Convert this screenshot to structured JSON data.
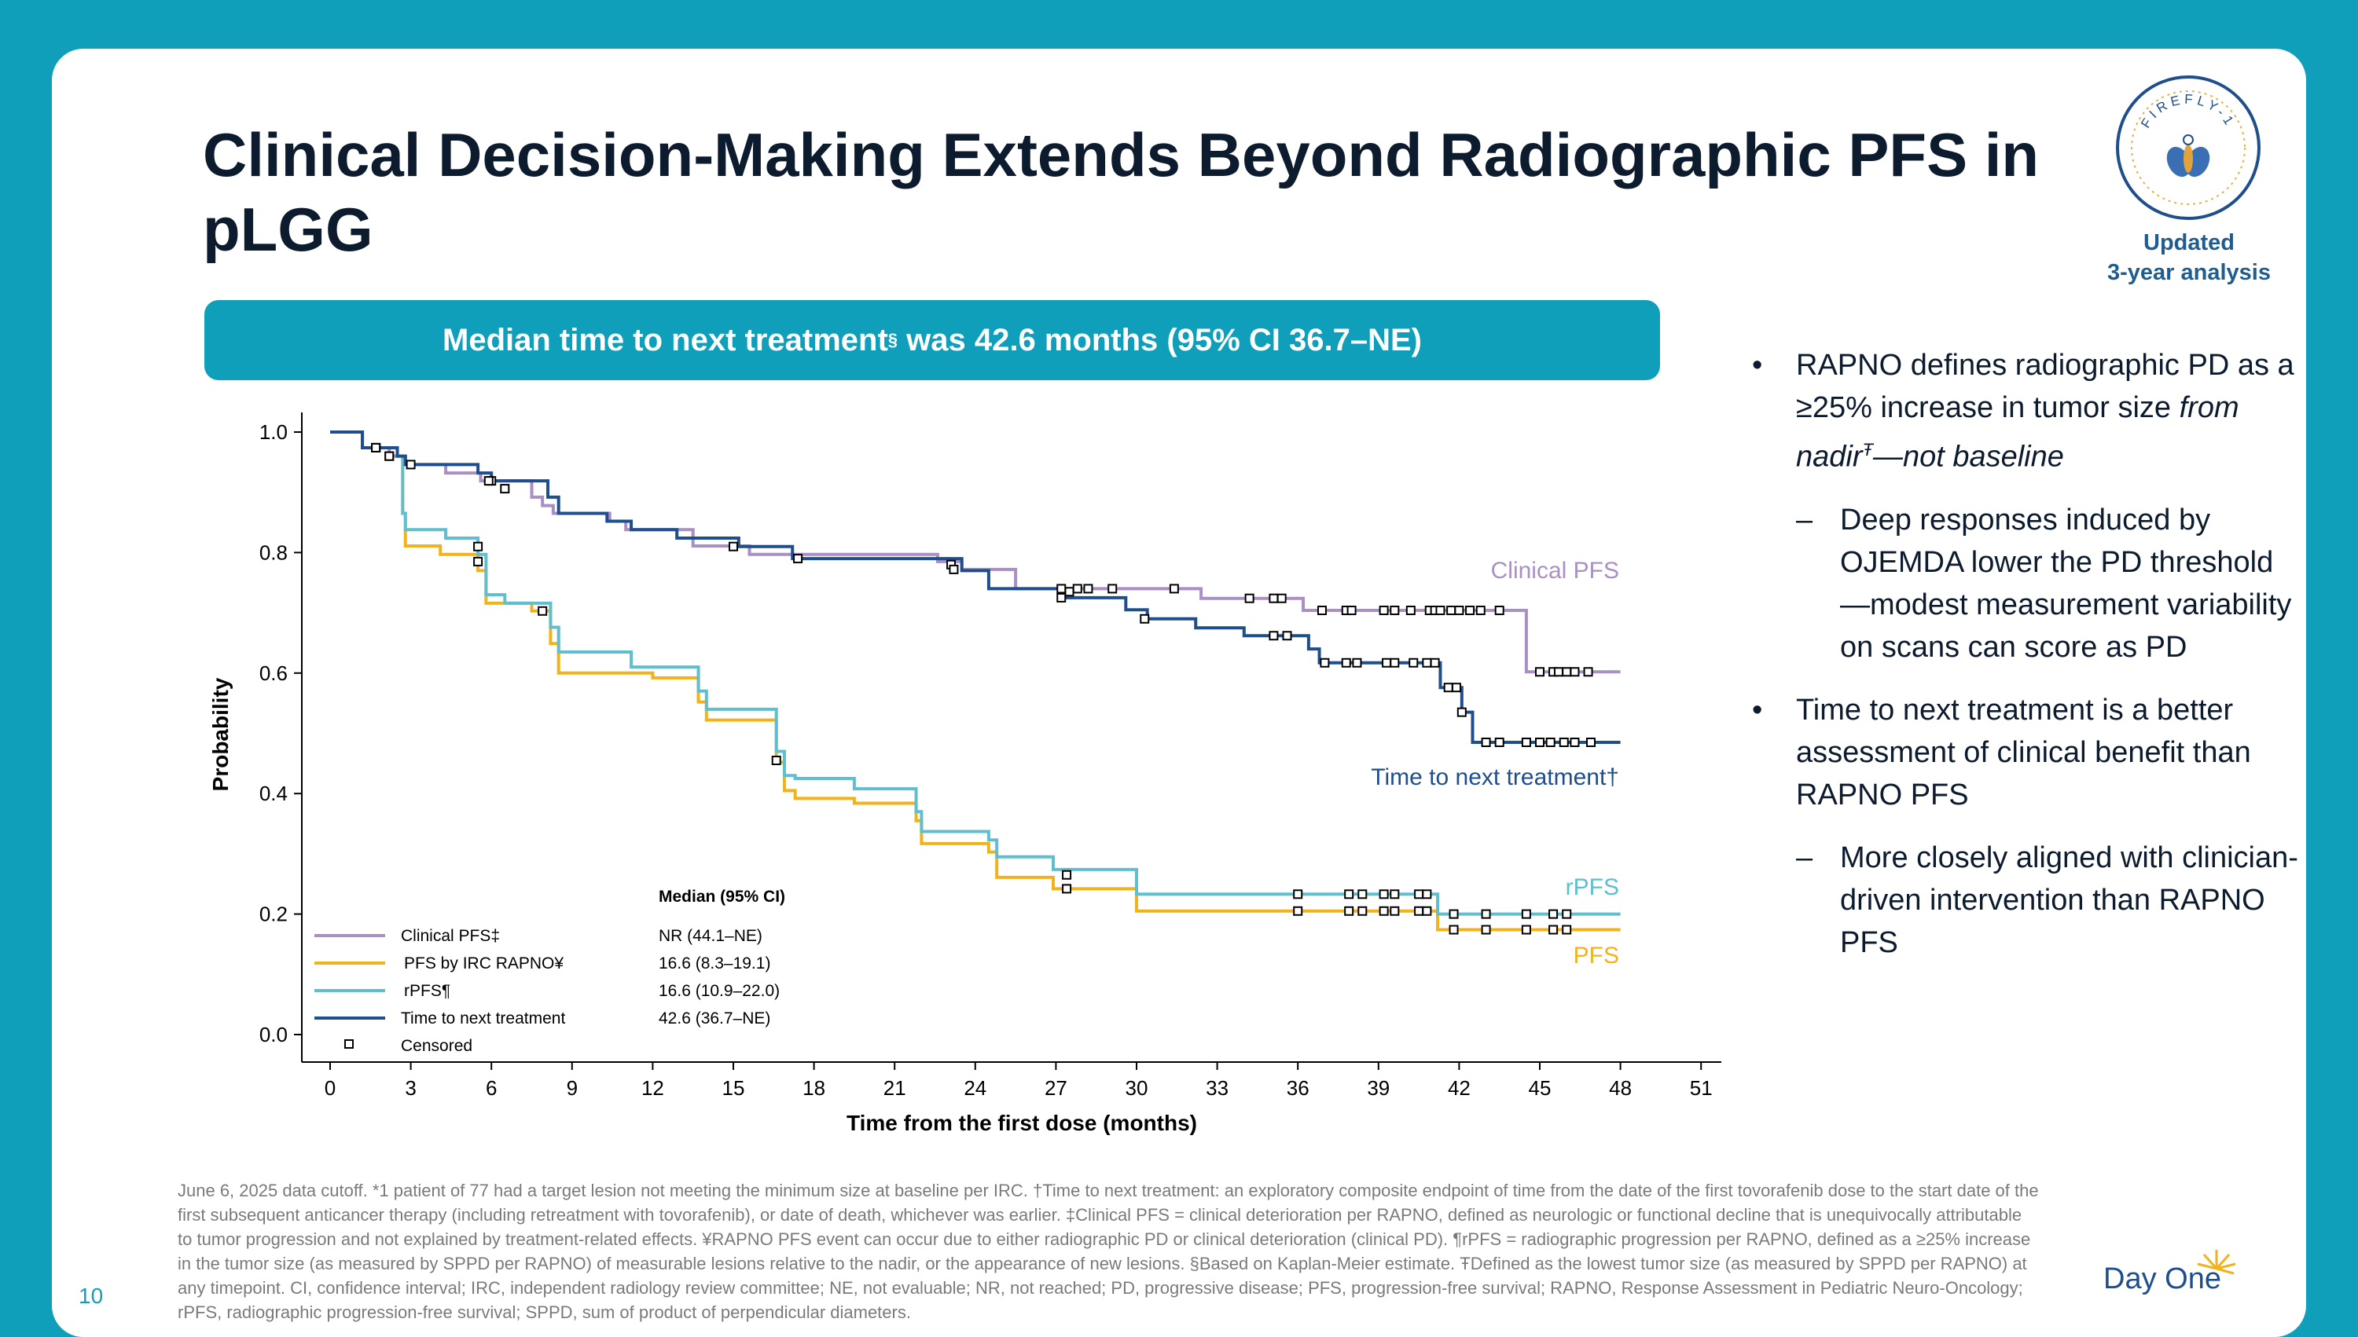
{
  "slide": {
    "title": "Clinical Decision-Making Extends Beyond Radiographic PFS in pLGG",
    "badge_logo": "FIREFLY-1",
    "badge_line1": "Updated",
    "badge_line2": "3-year analysis",
    "banner_pre": "Median time to next treatment",
    "banner_sup": "§",
    "banner_post": " was 42.6 months (95% CI 36.7–NE)",
    "page_number": "10",
    "company_logo": "Day One"
  },
  "bullets": {
    "b1_text": "RAPNO defines radiographic PD as a ≥25% increase in tumor size ",
    "b1_italic": "from nadir",
    "b1_sup": "Ŧ",
    "b1_italic2": "—not baseline",
    "b1_sub": "Deep responses induced by OJEMDA lower the PD threshold—modest measurement variability on scans can score as PD",
    "b2_text": "Time to next treatment is a better assessment of clinical benefit than RAPNO PFS",
    "b2_sub": "More closely aligned with clinician-driven intervention than RAPNO PFS",
    "bullet_glyph": "•",
    "dash_glyph": "–"
  },
  "footnote": "June 6, 2025 data cutoff. *1 patient of 77 had a target lesion not meeting the minimum size at baseline per IRC. †Time to next treatment: an exploratory composite endpoint of time from the date of the first tovorafenib dose to the start date of the first subsequent anticancer therapy (including retreatment with tovorafenib), or date of death, whichever was earlier. ‡Clinical PFS = clinical deterioration per RAPNO, defined as neurologic or functional decline that is unequivocally attributable to tumor progression and not explained by treatment-related effects. ¥RAPNO PFS event can occur due to either radiographic PD or clinical deterioration (clinical PD). ¶rPFS = radiographic progression per RAPNO, defined as a ≥25% increase in the tumor size (as measured by SPPD per RAPNO) of measurable lesions relative to the nadir, or the appearance of new lesions. §Based on Kaplan-Meier estimate. ŦDefined as the lowest tumor size (as measured by SPPD per RAPNO) at any timepoint.  CI, confidence interval; IRC, independent radiology review committee; NE, not evaluable; NR, not reached; PD, progressive disease; PFS, progression-free survival; RAPNO, Response Assessment in Pediatric Neuro-Oncology; rPFS, radiographic progression-free survival; SPPD, sum of product of perpendicular diameters.",
  "colors": {
    "teal": "#0f9fba",
    "clinical": "#a98fc4",
    "pfs": "#f2b31a",
    "rpfs": "#5fbfcf",
    "ttnt": "#1f4e8c"
  },
  "chart_data": {
    "type": "line",
    "xlabel": "Time from the first dose (months)",
    "ylabel": "Probability",
    "xlim": [
      0,
      51
    ],
    "ylim": [
      0,
      1.0
    ],
    "xticks": [
      0,
      3,
      6,
      9,
      12,
      15,
      18,
      21,
      24,
      27,
      30,
      33,
      36,
      39,
      42,
      45,
      48,
      51
    ],
    "yticks": [
      0.0,
      0.2,
      0.4,
      0.6,
      0.8,
      1.0
    ],
    "ytick_labels": [
      "0.0",
      "0.2",
      "0.4",
      "0.6",
      "0.8",
      "1.0"
    ],
    "legend_header": "Median (95% CI)",
    "censored_label": "Censored",
    "series": [
      {
        "key": "clinical",
        "name": "Clinical PFS‡",
        "median": "NR (44.1–NE)",
        "end_label": "Clinical PFS",
        "steps": [
          [
            0,
            1.0
          ],
          [
            1.2,
            0.974
          ],
          [
            2.2,
            0.96
          ],
          [
            2.8,
            0.946
          ],
          [
            4.3,
            0.932
          ],
          [
            5.6,
            0.919
          ],
          [
            7.5,
            0.892
          ],
          [
            7.9,
            0.878
          ],
          [
            8.3,
            0.865
          ],
          [
            10.4,
            0.852
          ],
          [
            11.0,
            0.838
          ],
          [
            13.5,
            0.811
          ],
          [
            15.6,
            0.797
          ],
          [
            17.1,
            0.797
          ],
          [
            22.6,
            0.785
          ],
          [
            23.5,
            0.772
          ],
          [
            25.5,
            0.74
          ],
          [
            30.3,
            0.74
          ],
          [
            32.4,
            0.724
          ],
          [
            35.2,
            0.724
          ],
          [
            36.2,
            0.704
          ],
          [
            44.1,
            0.704
          ],
          [
            44.5,
            0.602
          ],
          [
            48.0,
            0.602
          ]
        ],
        "censors": [
          [
            1.7,
            0.974
          ],
          [
            2.2,
            0.96
          ],
          [
            6.0,
            0.919
          ],
          [
            27.2,
            0.74
          ],
          [
            27.8,
            0.74
          ],
          [
            28.2,
            0.74
          ],
          [
            29.1,
            0.74
          ],
          [
            31.4,
            0.74
          ],
          [
            34.2,
            0.724
          ],
          [
            35.1,
            0.724
          ],
          [
            35.4,
            0.724
          ],
          [
            36.9,
            0.704
          ],
          [
            37.8,
            0.704
          ],
          [
            38.0,
            0.704
          ],
          [
            39.2,
            0.704
          ],
          [
            39.6,
            0.704
          ],
          [
            40.2,
            0.704
          ],
          [
            40.9,
            0.704
          ],
          [
            41.1,
            0.704
          ],
          [
            41.3,
            0.704
          ],
          [
            41.7,
            0.704
          ],
          [
            42.0,
            0.704
          ],
          [
            42.4,
            0.704
          ],
          [
            42.8,
            0.704
          ],
          [
            43.5,
            0.704
          ],
          [
            45.0,
            0.602
          ],
          [
            45.5,
            0.602
          ],
          [
            45.7,
            0.602
          ],
          [
            46.0,
            0.602
          ],
          [
            46.3,
            0.602
          ],
          [
            46.8,
            0.602
          ]
        ]
      },
      {
        "key": "pfs",
        "name": "PFS by IRC RAPNO¥",
        "median": "16.6 (8.3–19.1)",
        "end_label": "PFS",
        "steps": [
          [
            0,
            1.0
          ],
          [
            1.2,
            0.974
          ],
          [
            2.5,
            0.96
          ],
          [
            2.7,
            0.865
          ],
          [
            2.8,
            0.811
          ],
          [
            4.1,
            0.797
          ],
          [
            5.5,
            0.77
          ],
          [
            5.8,
            0.716
          ],
          [
            7.5,
            0.703
          ],
          [
            8.2,
            0.649
          ],
          [
            8.5,
            0.6
          ],
          [
            12.0,
            0.592
          ],
          [
            13.7,
            0.552
          ],
          [
            14.0,
            0.522
          ],
          [
            16.6,
            0.452
          ],
          [
            16.9,
            0.405
          ],
          [
            17.3,
            0.392
          ],
          [
            19.5,
            0.384
          ],
          [
            21.8,
            0.355
          ],
          [
            22.0,
            0.317
          ],
          [
            24.5,
            0.303
          ],
          [
            24.8,
            0.261
          ],
          [
            26.9,
            0.242
          ],
          [
            30.0,
            0.205
          ],
          [
            40.7,
            0.205
          ],
          [
            41.2,
            0.174
          ],
          [
            48.0,
            0.174
          ]
        ],
        "censors": [
          [
            1.7,
            0.974
          ],
          [
            7.9,
            0.703
          ],
          [
            27.4,
            0.242
          ],
          [
            36.0,
            0.205
          ],
          [
            37.9,
            0.205
          ],
          [
            38.4,
            0.205
          ],
          [
            39.2,
            0.205
          ],
          [
            39.6,
            0.205
          ],
          [
            40.5,
            0.205
          ],
          [
            40.8,
            0.205
          ],
          [
            41.8,
            0.174
          ],
          [
            43.0,
            0.174
          ],
          [
            44.5,
            0.174
          ],
          [
            45.5,
            0.174
          ],
          [
            46.0,
            0.174
          ]
        ]
      },
      {
        "key": "rpfs",
        "name": "rPFS¶",
        "median": "16.6 (10.9–22.0)",
        "end_label": "rPFS",
        "steps": [
          [
            0,
            1.0
          ],
          [
            1.2,
            0.974
          ],
          [
            2.5,
            0.96
          ],
          [
            2.7,
            0.865
          ],
          [
            2.8,
            0.838
          ],
          [
            4.3,
            0.824
          ],
          [
            5.5,
            0.797
          ],
          [
            5.8,
            0.73
          ],
          [
            6.5,
            0.716
          ],
          [
            8.2,
            0.676
          ],
          [
            8.5,
            0.635
          ],
          [
            11.2,
            0.61
          ],
          [
            13.7,
            0.57
          ],
          [
            14.0,
            0.54
          ],
          [
            16.6,
            0.47
          ],
          [
            16.9,
            0.43
          ],
          [
            17.3,
            0.425
          ],
          [
            19.5,
            0.408
          ],
          [
            21.8,
            0.37
          ],
          [
            22.0,
            0.337
          ],
          [
            24.5,
            0.323
          ],
          [
            24.8,
            0.295
          ],
          [
            26.9,
            0.274
          ],
          [
            30.0,
            0.233
          ],
          [
            40.7,
            0.233
          ],
          [
            41.2,
            0.2
          ],
          [
            48.0,
            0.2
          ]
        ],
        "censors": [
          [
            1.7,
            0.974
          ],
          [
            5.5,
            0.81
          ],
          [
            5.5,
            0.785
          ],
          [
            16.6,
            0.455
          ],
          [
            27.4,
            0.265
          ],
          [
            36.0,
            0.233
          ],
          [
            37.9,
            0.233
          ],
          [
            38.4,
            0.233
          ],
          [
            39.2,
            0.233
          ],
          [
            39.6,
            0.233
          ],
          [
            40.5,
            0.233
          ],
          [
            40.8,
            0.233
          ],
          [
            41.8,
            0.2
          ],
          [
            43.0,
            0.2
          ],
          [
            44.5,
            0.2
          ],
          [
            45.5,
            0.2
          ],
          [
            46.0,
            0.2
          ]
        ]
      },
      {
        "key": "ttnt",
        "name": "Time to next treatment",
        "median": "42.6 (36.7–NE)",
        "end_label": "Time to next treatment†",
        "steps": [
          [
            0,
            1.0
          ],
          [
            1.2,
            0.974
          ],
          [
            2.5,
            0.96
          ],
          [
            2.8,
            0.946
          ],
          [
            5.5,
            0.932
          ],
          [
            6.0,
            0.919
          ],
          [
            8.1,
            0.892
          ],
          [
            8.5,
            0.865
          ],
          [
            10.3,
            0.852
          ],
          [
            11.2,
            0.838
          ],
          [
            12.9,
            0.824
          ],
          [
            15.2,
            0.81
          ],
          [
            17.2,
            0.79
          ],
          [
            23.5,
            0.77
          ],
          [
            24.5,
            0.74
          ],
          [
            27.1,
            0.725
          ],
          [
            29.6,
            0.705
          ],
          [
            30.4,
            0.69
          ],
          [
            32.2,
            0.675
          ],
          [
            34.0,
            0.662
          ],
          [
            36.4,
            0.64
          ],
          [
            36.8,
            0.617
          ],
          [
            40.4,
            0.617
          ],
          [
            41.3,
            0.576
          ],
          [
            42.1,
            0.535
          ],
          [
            42.5,
            0.485
          ],
          [
            48.0,
            0.485
          ]
        ],
        "censors": [
          [
            1.7,
            0.974
          ],
          [
            2.2,
            0.96
          ],
          [
            3.0,
            0.946
          ],
          [
            5.9,
            0.919
          ],
          [
            6.5,
            0.906
          ],
          [
            15.0,
            0.81
          ],
          [
            17.4,
            0.79
          ],
          [
            23.1,
            0.78
          ],
          [
            23.2,
            0.772
          ],
          [
            27.2,
            0.725
          ],
          [
            27.5,
            0.735
          ],
          [
            30.3,
            0.69
          ],
          [
            35.1,
            0.662
          ],
          [
            35.6,
            0.662
          ],
          [
            37.0,
            0.617
          ],
          [
            37.8,
            0.617
          ],
          [
            38.2,
            0.617
          ],
          [
            39.3,
            0.617
          ],
          [
            39.6,
            0.617
          ],
          [
            40.3,
            0.617
          ],
          [
            40.8,
            0.617
          ],
          [
            41.1,
            0.617
          ],
          [
            41.6,
            0.576
          ],
          [
            41.9,
            0.576
          ],
          [
            42.1,
            0.535
          ],
          [
            43.0,
            0.485
          ],
          [
            43.5,
            0.485
          ],
          [
            44.5,
            0.485
          ],
          [
            45.0,
            0.485
          ],
          [
            45.4,
            0.485
          ],
          [
            45.9,
            0.485
          ],
          [
            46.3,
            0.485
          ],
          [
            46.9,
            0.485
          ]
        ]
      }
    ]
  }
}
